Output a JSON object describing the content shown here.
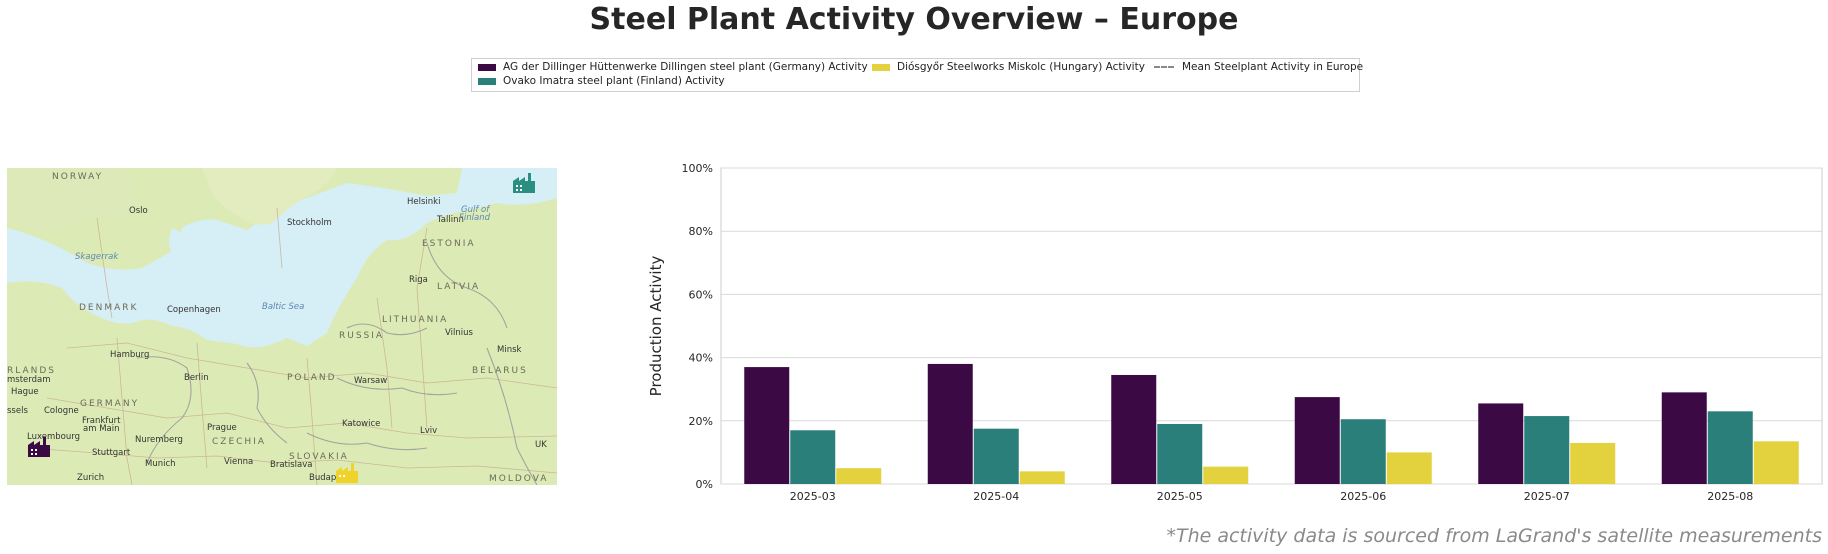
{
  "title": "Steel Plant Activity Overview – Europe",
  "footnote": "*The activity data is sourced from LaGrand's satellite measurements",
  "legend": {
    "items": [
      {
        "label": "AG der Dillinger Hüttenwerke Dillingen steel plant (Germany) Activity",
        "color": "#3b0a45"
      },
      {
        "label": "Ovako Imatra steel plant (Finland) Activity",
        "color": "#2a7f7a"
      },
      {
        "label": "Diósgyőr Steelworks Miskolc (Hungary) Activity",
        "color": "#e3d13e"
      },
      {
        "label": "Mean Steelplant Activity in Europe",
        "color": "#888888"
      }
    ]
  },
  "map": {
    "labels": {
      "norway": "NORWAY",
      "oslo": "Oslo",
      "stockholm": "Stockholm",
      "helsinki": "Helsinki",
      "tallinn": "Tallinn",
      "gulf": "Gulf of",
      "finland": "Finland",
      "estonia": "ESTONIA",
      "skagerrak": "Skagerrak",
      "riga": "Riga",
      "latvia": "LATVIA",
      "denmark": "DENMARK",
      "copenhagen": "Copenhagen",
      "baltic": "Baltic Sea",
      "lithuania": "LITHUANIA",
      "russia": "RUSSIA",
      "vilnius": "Vilnius",
      "minsk": "Minsk",
      "hamburg": "Hamburg",
      "berlin": "Berlin",
      "poland": "POLAND",
      "warsaw": "Warsaw",
      "belarus": "BELARUS",
      "amsterdam": "msterdam",
      "lands": "RLANDS",
      "hague": "Hague",
      "germany": "GERMANY",
      "cologne": "Cologne",
      "frankfurt": "Frankfurt",
      "ammain": "am Main",
      "prague": "Prague",
      "katowice": "Katowice",
      "lviv": "Lviv",
      "luxembourg": "Luxembourg",
      "nuremberg": "Nuremberg",
      "czechia": "CZECHIA",
      "stuttgart": "Stuttgart",
      "munich": "Munich",
      "vienna": "Vienna",
      "bratislava": "Bratislava",
      "slovakia": "SLOVAKIA",
      "ukr": "UK",
      "zurich": "Zurich",
      "budapest": "Budapest",
      "moldova": "MOLDOVA",
      "ssels": "ssels"
    }
  },
  "chart_data": {
    "type": "bar",
    "title": "Steel Plant Activity Overview – Europe",
    "xlabel": "",
    "ylabel": "Production Activity",
    "categories": [
      "2025-03",
      "2025-04",
      "2025-05",
      "2025-06",
      "2025-07",
      "2025-08"
    ],
    "series": [
      {
        "name": "AG der Dillinger Hüttenwerke Dillingen steel plant (Germany) Activity",
        "color": "#3b0a45",
        "values": [
          37,
          38,
          34.5,
          27.5,
          25.5,
          29
        ]
      },
      {
        "name": "Ovako Imatra steel plant (Finland) Activity",
        "color": "#2a7f7a",
        "values": [
          17,
          17.5,
          19,
          20.5,
          21.5,
          23
        ]
      },
      {
        "name": "Diósgyőr Steelworks Miskolc (Hungary) Activity",
        "color": "#e3d13e",
        "values": [
          5,
          4,
          5.5,
          10,
          13,
          13.5
        ]
      }
    ],
    "mean_line": {
      "name": "Mean Steelplant Activity in Europe",
      "values": []
    },
    "ylim": [
      0,
      100
    ],
    "yticks": [
      "0%",
      "20%",
      "40%",
      "60%",
      "80%",
      "100%"
    ],
    "ytick_values": [
      0,
      20,
      40,
      60,
      80,
      100
    ],
    "grid": true,
    "legend_position": "top-center"
  }
}
